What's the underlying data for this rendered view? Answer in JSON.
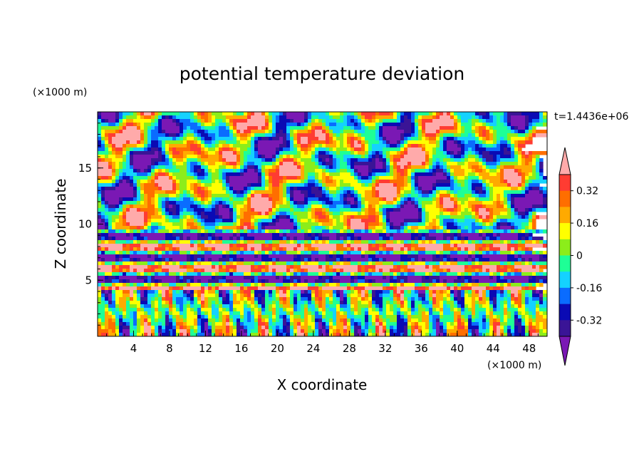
{
  "chart_data": {
    "type": "heatmap",
    "title": "potential temperature deviation",
    "xlabel": "X coordinate",
    "ylabel": "Z coordinate",
    "x_unit": "(×1000 m)",
    "z_unit": "(×1000 m)",
    "time_label": "t=1.4436e+06",
    "xlim": [
      0,
      50
    ],
    "ylim": [
      0,
      20
    ],
    "x_ticks": [
      4,
      8,
      12,
      16,
      20,
      24,
      28,
      32,
      36,
      40,
      44,
      48
    ],
    "y_ticks": [
      5,
      10,
      15
    ],
    "x_minor_step": 1,
    "y_minor_step": 1,
    "colorbar": {
      "levels": [
        -0.4,
        -0.32,
        -0.24,
        -0.16,
        -0.08,
        0,
        0.08,
        0.16,
        0.24,
        0.32,
        0.4
      ],
      "labels": [
        "0.32",
        "0.16",
        "0",
        "-0.16",
        "-0.32"
      ],
      "label_values": [
        0.32,
        0.16,
        0,
        -0.16,
        -0.32
      ],
      "colors": [
        "#7a18b4",
        "#3a1496",
        "#0a0ab4",
        "#0a6cff",
        "#14d2ff",
        "#1eff96",
        "#8ced1a",
        "#ffff00",
        "#ffaa00",
        "#ff6e00",
        "#ff3c32",
        "#ffaaaa"
      ],
      "extend": "both"
    },
    "layers": [
      {
        "name": "upper",
        "z_range": [
          9.5,
          20
        ],
        "pattern": "wavy blobs"
      },
      {
        "name": "middle",
        "z_range": [
          4,
          9.5
        ],
        "pattern": "horizontal bands"
      },
      {
        "name": "lower",
        "z_range": [
          0,
          4
        ],
        "pattern": "vertical plumes"
      }
    ],
    "grid": false
  }
}
